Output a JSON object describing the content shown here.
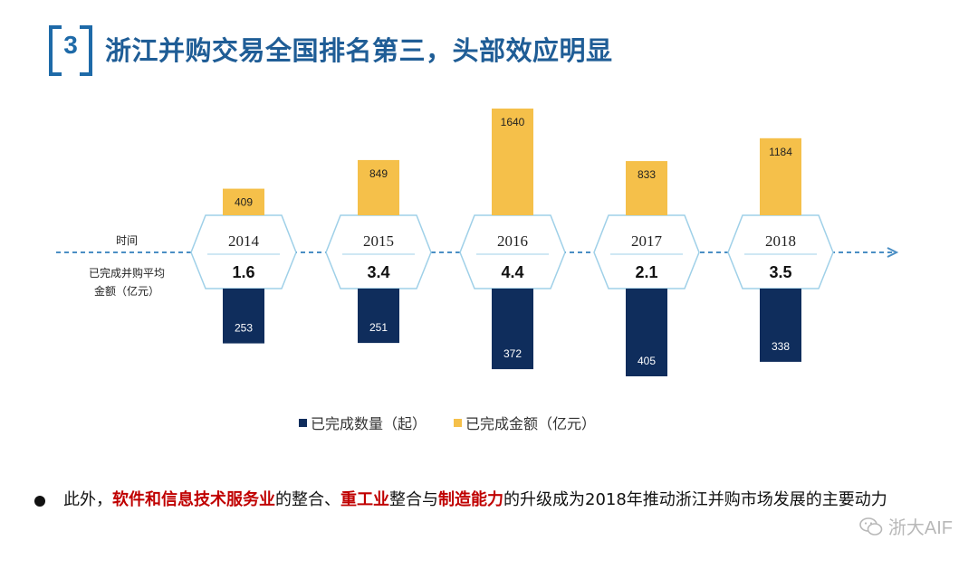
{
  "header": {
    "section_number": "3",
    "title": "浙江并购交易全国排名第三，头部效应明显"
  },
  "row_labels": {
    "time": "时间",
    "avg_line1": "已完成并购平均",
    "avg_line2": "金额（亿元）"
  },
  "colors": {
    "navy": "#0f2d5c",
    "gold": "#f5c04a",
    "arrow": "#4a8ec4",
    "hex_border": "#9fd0e8"
  },
  "chart_data": {
    "type": "bar",
    "title": "",
    "categories": [
      "2014",
      "2015",
      "2016",
      "2017",
      "2018"
    ],
    "series": [
      {
        "name": "已完成数量（起）",
        "values": [
          253,
          251,
          372,
          405,
          338
        ],
        "direction": "down"
      },
      {
        "name": "已完成金额（亿元）",
        "values": [
          409,
          849,
          1640,
          833,
          1184
        ],
        "direction": "up"
      }
    ],
    "average_amount": [
      "1.6",
      "3.4",
      "4.4",
      "2.1",
      "3.5"
    ],
    "legend": [
      "已完成数量（起）",
      "已完成金额（亿元）"
    ],
    "legend_position": "bottom"
  },
  "bullet": {
    "t1": "此外，",
    "h1": "软件和信息技术服务业",
    "t2": "的整合、",
    "h2": "重工业",
    "t3": "整合与",
    "h3": "制造能力",
    "t4": "的升级成为2018年推动浙江并购市场发展的主要动力"
  },
  "watermark": {
    "text": "浙大AIF"
  }
}
